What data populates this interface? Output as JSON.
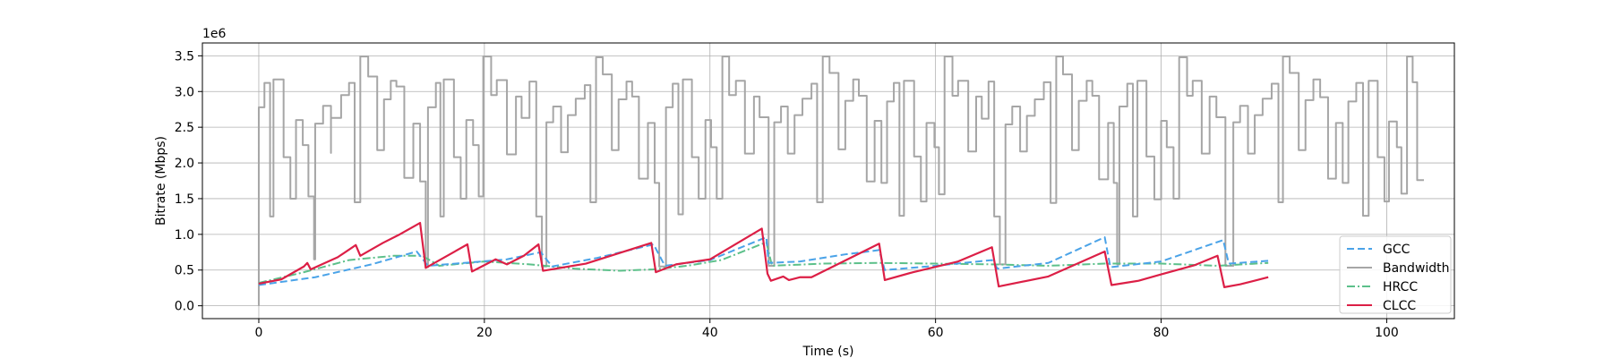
{
  "chart_data": {
    "type": "line",
    "xlabel": "Time (s)",
    "ylabel": "Bitrate (Mbps)",
    "offset_text": "1e6",
    "xlim": [
      -5,
      106
    ],
    "ylim": [
      -180000,
      3680000
    ],
    "x_ticks": [
      0,
      20,
      40,
      60,
      80,
      100
    ],
    "y_ticks": [
      0,
      500000,
      1000000,
      1500000,
      2000000,
      2500000,
      3000000,
      3500000
    ],
    "x_tick_labels": [
      "0",
      "20",
      "40",
      "60",
      "80",
      "100"
    ],
    "y_tick_labels": [
      "0.0",
      "0.5",
      "1.0",
      "1.5",
      "2.0",
      "2.5",
      "3.0",
      "3.5"
    ],
    "grid": true,
    "legend_position": "lower-right",
    "series": [
      {
        "name": "GCC",
        "color": "#4aa3e8",
        "style": "dashed",
        "points": [
          [
            0,
            290000
          ],
          [
            5,
            400000
          ],
          [
            10,
            580000
          ],
          [
            14,
            760000
          ],
          [
            15,
            560000
          ],
          [
            19,
            610000
          ],
          [
            22,
            650000
          ],
          [
            25,
            750000
          ],
          [
            26,
            550000
          ],
          [
            30,
            670000
          ],
          [
            35,
            860000
          ],
          [
            36,
            560000
          ],
          [
            40,
            640000
          ],
          [
            45,
            960000
          ],
          [
            45.2,
            600000
          ],
          [
            48,
            620000
          ],
          [
            52,
            720000
          ],
          [
            55,
            780000
          ],
          [
            55.5,
            500000
          ],
          [
            60,
            560000
          ],
          [
            65,
            640000
          ],
          [
            65.5,
            520000
          ],
          [
            70,
            600000
          ],
          [
            75,
            960000
          ],
          [
            75.5,
            540000
          ],
          [
            80,
            620000
          ],
          [
            85.5,
            920000
          ],
          [
            86,
            590000
          ],
          [
            89.5,
            630000
          ]
        ]
      },
      {
        "name": "Bandwidth",
        "color": "#a6a6a6",
        "style": "step",
        "points": [
          [
            0,
            0
          ],
          [
            0,
            2780000
          ],
          [
            0.5,
            3120000
          ],
          [
            1,
            1250000
          ],
          [
            1.3,
            3170000
          ],
          [
            2.2,
            2080000
          ],
          [
            2.8,
            1500000
          ],
          [
            3.3,
            2600000
          ],
          [
            3.9,
            2250000
          ],
          [
            4.4,
            1530000
          ],
          [
            4.9,
            650000
          ],
          [
            5,
            2550000
          ],
          [
            5.7,
            2800000
          ],
          [
            6.4,
            2140000
          ],
          [
            6.4,
            2630000
          ],
          [
            7.3,
            2950000
          ],
          [
            8,
            3120000
          ],
          [
            8.5,
            1450000
          ],
          [
            9,
            3490000
          ],
          [
            9.7,
            3210000
          ],
          [
            10.5,
            2180000
          ],
          [
            11.1,
            2890000
          ],
          [
            11.7,
            3150000
          ],
          [
            12.2,
            3070000
          ],
          [
            12.9,
            1790000
          ],
          [
            13.7,
            2550000
          ],
          [
            14.3,
            1740000
          ],
          [
            14.8,
            540000
          ],
          [
            15,
            2780000
          ],
          [
            15.7,
            3120000
          ],
          [
            16.1,
            1250000
          ],
          [
            16.4,
            3170000
          ],
          [
            17.3,
            2080000
          ],
          [
            17.9,
            1500000
          ],
          [
            18.4,
            2600000
          ],
          [
            19,
            2250000
          ],
          [
            19.5,
            1530000
          ],
          [
            19.9,
            3490000
          ],
          [
            20.6,
            2950000
          ],
          [
            21.1,
            3160000
          ],
          [
            22,
            2120000
          ],
          [
            22.8,
            2930000
          ],
          [
            23.3,
            2630000
          ],
          [
            24,
            3140000
          ],
          [
            24.6,
            1250000
          ],
          [
            25.1,
            550000
          ],
          [
            25.5,
            2570000
          ],
          [
            26.1,
            2790000
          ],
          [
            26.8,
            2150000
          ],
          [
            27.4,
            2670000
          ],
          [
            28.1,
            2900000
          ],
          [
            28.9,
            3090000
          ],
          [
            29.4,
            1450000
          ],
          [
            29.9,
            3480000
          ],
          [
            30.5,
            3240000
          ],
          [
            31.3,
            2180000
          ],
          [
            31.9,
            2890000
          ],
          [
            32.6,
            3140000
          ],
          [
            33.1,
            2930000
          ],
          [
            33.7,
            1780000
          ],
          [
            34.5,
            2560000
          ],
          [
            35.1,
            1720000
          ],
          [
            35.5,
            550000
          ],
          [
            36.1,
            2780000
          ],
          [
            36.7,
            3110000
          ],
          [
            37.2,
            1280000
          ],
          [
            37.6,
            3170000
          ],
          [
            38.4,
            2080000
          ],
          [
            39,
            1500000
          ],
          [
            39.6,
            2600000
          ],
          [
            40.1,
            2220000
          ],
          [
            40.6,
            1500000
          ],
          [
            41.1,
            3490000
          ],
          [
            41.7,
            2950000
          ],
          [
            42.3,
            3150000
          ],
          [
            43.1,
            2130000
          ],
          [
            43.9,
            2930000
          ],
          [
            44.4,
            2640000
          ],
          [
            45.2,
            560000
          ],
          [
            45.7,
            2570000
          ],
          [
            46.3,
            2790000
          ],
          [
            46.9,
            2130000
          ],
          [
            47.5,
            2670000
          ],
          [
            48.2,
            2900000
          ],
          [
            49,
            3110000
          ],
          [
            49.5,
            1450000
          ],
          [
            50,
            3490000
          ],
          [
            50.6,
            3260000
          ],
          [
            51.4,
            2190000
          ],
          [
            52,
            2870000
          ],
          [
            52.7,
            3170000
          ],
          [
            53.2,
            2940000
          ],
          [
            53.9,
            1740000
          ],
          [
            54.6,
            2590000
          ],
          [
            55.2,
            1720000
          ],
          [
            55.7,
            2860000
          ],
          [
            56.3,
            3120000
          ],
          [
            56.8,
            1260000
          ],
          [
            57.2,
            3150000
          ],
          [
            58.1,
            2090000
          ],
          [
            58.7,
            1460000
          ],
          [
            59.2,
            2560000
          ],
          [
            59.9,
            2220000
          ],
          [
            60.3,
            1560000
          ],
          [
            60.8,
            3490000
          ],
          [
            61.5,
            2940000
          ],
          [
            62,
            3150000
          ],
          [
            62.9,
            2160000
          ],
          [
            63.6,
            2930000
          ],
          [
            64.1,
            2620000
          ],
          [
            64.7,
            3140000
          ],
          [
            65.2,
            1250000
          ],
          [
            65.7,
            580000
          ],
          [
            66.2,
            2540000
          ],
          [
            66.8,
            2790000
          ],
          [
            67.5,
            2160000
          ],
          [
            68.1,
            2660000
          ],
          [
            68.8,
            2890000
          ],
          [
            69.6,
            3130000
          ],
          [
            70.2,
            1440000
          ],
          [
            70.7,
            3490000
          ],
          [
            71.3,
            3240000
          ],
          [
            72.1,
            2180000
          ],
          [
            72.7,
            2870000
          ],
          [
            73.4,
            3150000
          ],
          [
            73.9,
            2940000
          ],
          [
            74.5,
            1770000
          ],
          [
            75.3,
            2560000
          ],
          [
            75.8,
            1720000
          ],
          [
            76.1,
            580000
          ],
          [
            76.3,
            2790000
          ],
          [
            77,
            3110000
          ],
          [
            77.5,
            1250000
          ],
          [
            77.9,
            3150000
          ],
          [
            78.7,
            2090000
          ],
          [
            79.4,
            1490000
          ],
          [
            80,
            2590000
          ],
          [
            80.5,
            2220000
          ],
          [
            81.1,
            1500000
          ],
          [
            81.6,
            3480000
          ],
          [
            82.3,
            2940000
          ],
          [
            82.8,
            3150000
          ],
          [
            83.6,
            2130000
          ],
          [
            84.3,
            2930000
          ],
          [
            84.9,
            2640000
          ],
          [
            85.7,
            560000
          ],
          [
            86.4,
            2570000
          ],
          [
            87,
            2800000
          ],
          [
            87.7,
            2130000
          ],
          [
            88.3,
            2670000
          ],
          [
            89,
            2900000
          ],
          [
            89.8,
            3110000
          ],
          [
            90.4,
            1450000
          ],
          [
            90.8,
            3490000
          ],
          [
            91.4,
            3260000
          ],
          [
            92.2,
            2180000
          ],
          [
            92.8,
            2880000
          ],
          [
            93.5,
            3170000
          ],
          [
            94.1,
            2920000
          ],
          [
            94.8,
            1780000
          ],
          [
            95.5,
            2560000
          ],
          [
            96.1,
            1720000
          ],
          [
            96.6,
            2860000
          ],
          [
            97.3,
            3120000
          ],
          [
            97.9,
            1260000
          ],
          [
            98.4,
            3150000
          ],
          [
            99.2,
            2080000
          ],
          [
            99.8,
            1460000
          ],
          [
            100.2,
            2580000
          ],
          [
            100.9,
            2220000
          ],
          [
            101.3,
            1570000
          ],
          [
            101.8,
            3490000
          ],
          [
            102.3,
            3130000
          ],
          [
            102.7,
            1760000
          ],
          [
            103.3,
            1760000
          ]
        ]
      },
      {
        "name": "HRCC",
        "color": "#5cc08a",
        "style": "dashdot",
        "points": [
          [
            0,
            320000
          ],
          [
            4,
            470000
          ],
          [
            8,
            640000
          ],
          [
            12,
            700000
          ],
          [
            14.5,
            700000
          ],
          [
            16,
            560000
          ],
          [
            20,
            620000
          ],
          [
            24,
            580000
          ],
          [
            28,
            520000
          ],
          [
            32,
            490000
          ],
          [
            35,
            510000
          ],
          [
            38,
            560000
          ],
          [
            41,
            640000
          ],
          [
            45,
            890000
          ],
          [
            45.5,
            560000
          ],
          [
            50,
            590000
          ],
          [
            55,
            600000
          ],
          [
            60,
            590000
          ],
          [
            65,
            580000
          ],
          [
            70,
            560000
          ],
          [
            75,
            590000
          ],
          [
            80,
            590000
          ],
          [
            85,
            560000
          ],
          [
            89.5,
            600000
          ]
        ]
      },
      {
        "name": "CLCC",
        "color": "#dc1f46",
        "style": "solid",
        "points": [
          [
            0,
            310000
          ],
          [
            2,
            370000
          ],
          [
            4,
            550000
          ],
          [
            4.3,
            600000
          ],
          [
            4.6,
            510000
          ],
          [
            7,
            680000
          ],
          [
            8.6,
            850000
          ],
          [
            9,
            700000
          ],
          [
            11,
            880000
          ],
          [
            12.5,
            1000000
          ],
          [
            14.3,
            1160000
          ],
          [
            14.8,
            530000
          ],
          [
            18.5,
            860000
          ],
          [
            18.9,
            480000
          ],
          [
            21,
            650000
          ],
          [
            22,
            580000
          ],
          [
            23.5,
            700000
          ],
          [
            24.8,
            860000
          ],
          [
            25.2,
            490000
          ],
          [
            29,
            590000
          ],
          [
            34.8,
            880000
          ],
          [
            35.2,
            470000
          ],
          [
            37,
            580000
          ],
          [
            40,
            650000
          ],
          [
            44.6,
            1080000
          ],
          [
            45.1,
            450000
          ],
          [
            45.4,
            350000
          ],
          [
            46.5,
            410000
          ],
          [
            47,
            360000
          ],
          [
            48,
            400000
          ],
          [
            49,
            400000
          ],
          [
            55,
            870000
          ],
          [
            55.5,
            360000
          ],
          [
            58,
            470000
          ],
          [
            62,
            620000
          ],
          [
            65,
            820000
          ],
          [
            65.6,
            270000
          ],
          [
            70,
            410000
          ],
          [
            75,
            760000
          ],
          [
            75.6,
            290000
          ],
          [
            78,
            350000
          ],
          [
            80,
            440000
          ],
          [
            83,
            570000
          ],
          [
            85,
            700000
          ],
          [
            85.6,
            260000
          ],
          [
            87,
            300000
          ],
          [
            89.5,
            400000
          ]
        ]
      }
    ]
  }
}
